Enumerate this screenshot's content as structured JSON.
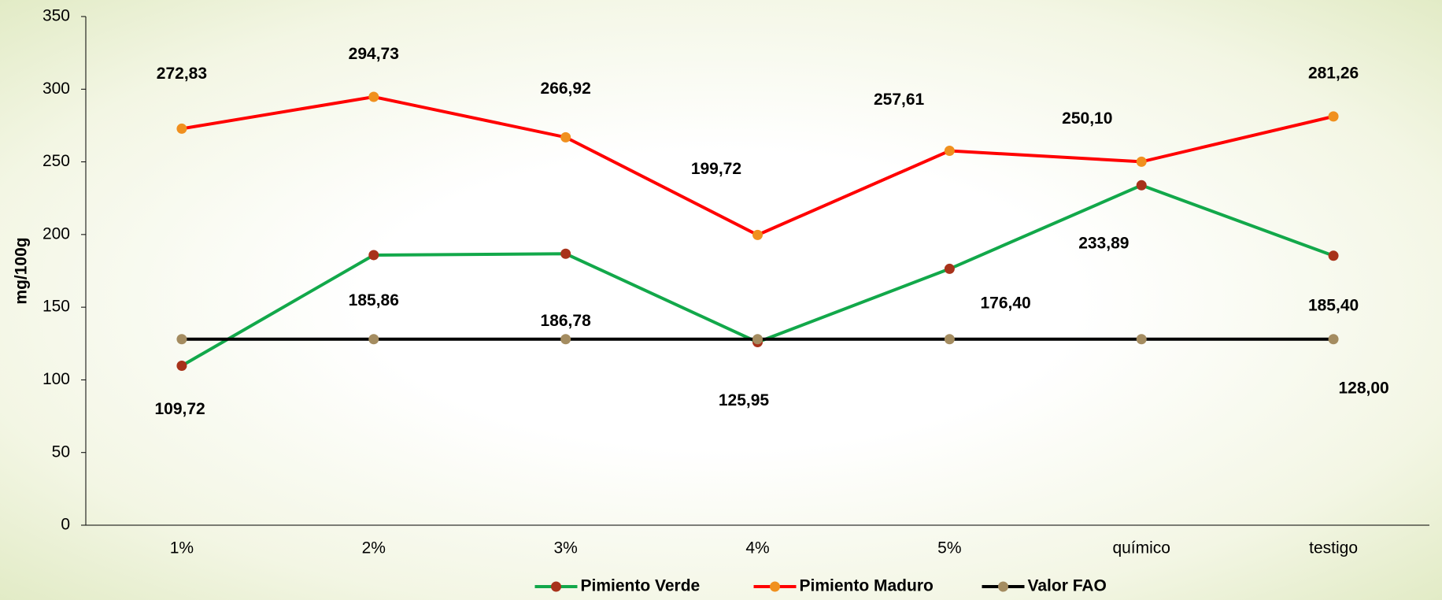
{
  "chart_data": {
    "type": "line",
    "y_label": "mg/100g",
    "categories": [
      "1%",
      "2%",
      "3%",
      "4%",
      "5%",
      "químico",
      "testigo"
    ],
    "series": [
      {
        "name": "Pimiento Verde",
        "color": "#12a84a",
        "marker_color": "#a8321a",
        "values": [
          109.72,
          185.86,
          186.78,
          125.95,
          176.4,
          233.89,
          185.4
        ],
        "value_labels": [
          "109,72",
          "185,86",
          "186,78",
          "125,95",
          "176,40",
          "233,89",
          "185,40"
        ]
      },
      {
        "name": "Pimiento Maduro",
        "color": "#ff0000",
        "marker_color": "#f0901e",
        "values": [
          272.83,
          294.73,
          266.92,
          199.72,
          257.61,
          250.1,
          281.26
        ],
        "value_labels": [
          "272,83",
          "294,73",
          "266,92",
          "199,72",
          "257,61",
          "250,10",
          "281,26"
        ]
      },
      {
        "name": "Valor FAO",
        "color": "#000000",
        "marker_color": "#a48c60",
        "values": [
          128,
          128,
          128,
          128,
          128,
          128,
          128
        ],
        "value_labels": [
          null,
          null,
          null,
          null,
          null,
          null,
          "128,00"
        ]
      }
    ],
    "ylim": [
      0,
      350
    ],
    "yticks": [
      0,
      50,
      100,
      150,
      200,
      250,
      300,
      350
    ],
    "grid": false,
    "legend": "bottom"
  }
}
